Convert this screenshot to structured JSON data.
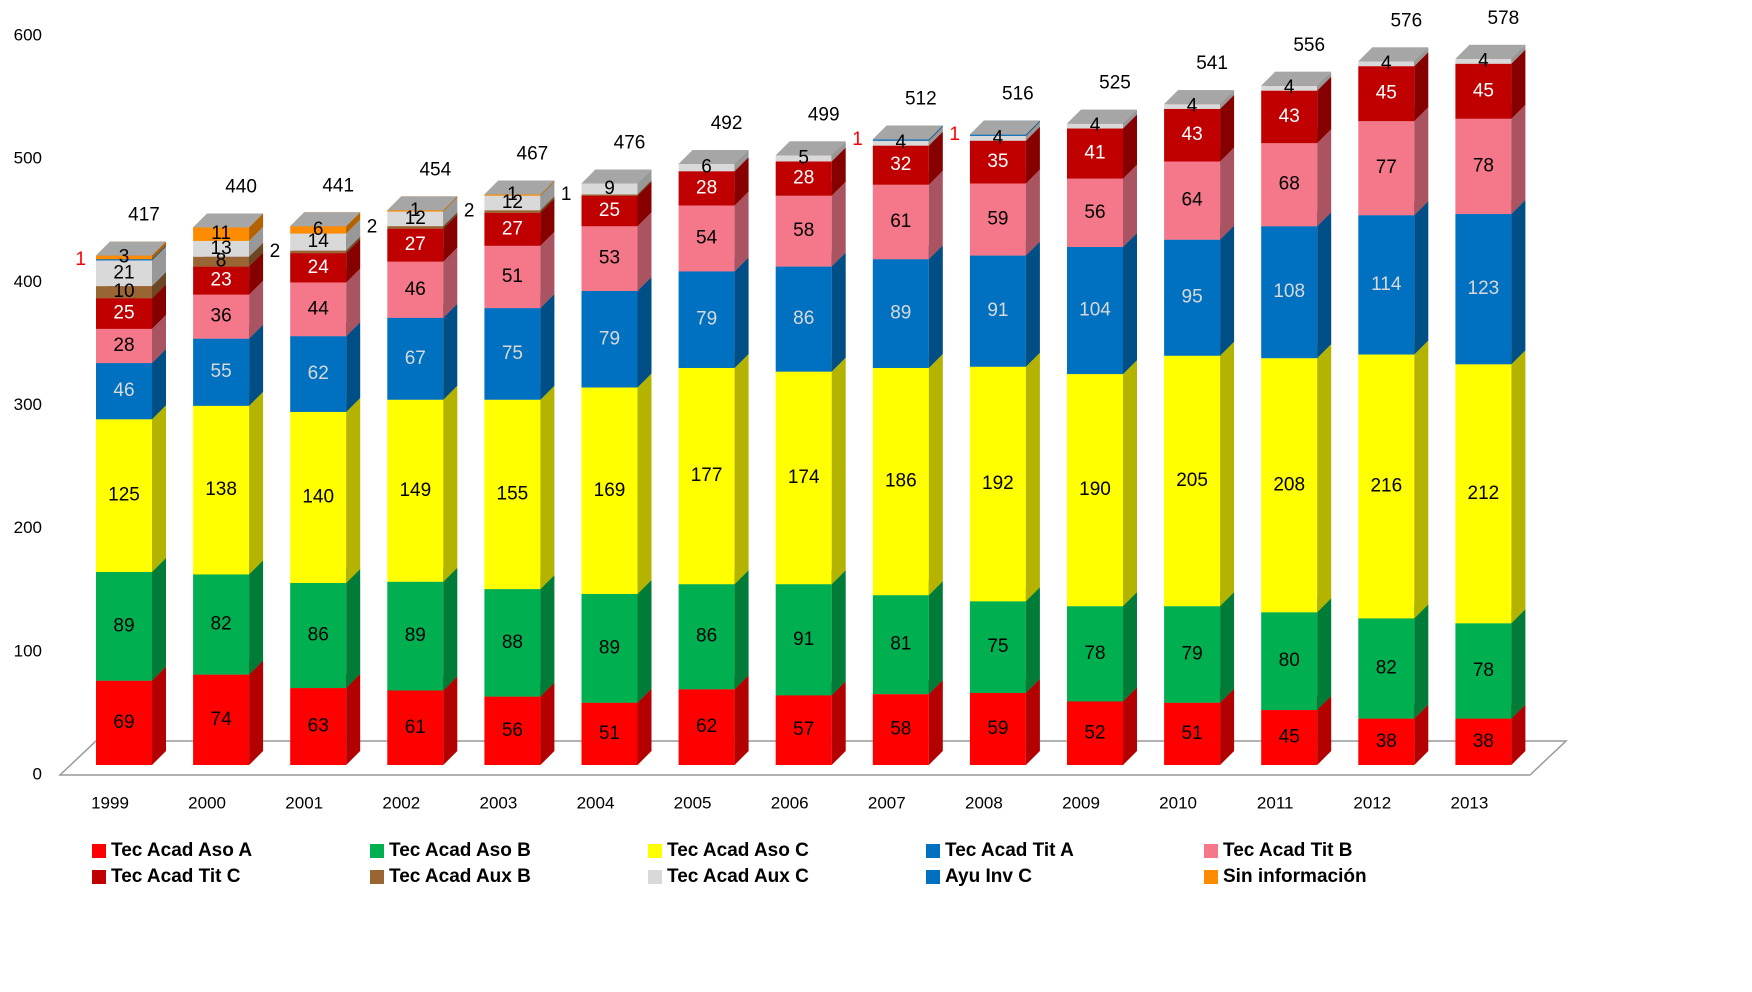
{
  "chart_data": {
    "type": "stacked_bar_3d",
    "categories": [
      "1999",
      "2000",
      "2001",
      "2002",
      "2003",
      "2004",
      "2005",
      "2006",
      "2007",
      "2008",
      "2009",
      "2010",
      "2011",
      "2012",
      "2013"
    ],
    "series": [
      {
        "name": "Tec Acad Aso A",
        "color": "#ff0000",
        "label_color": "#000000",
        "values": [
          69,
          74,
          63,
          61,
          56,
          51,
          62,
          57,
          58,
          59,
          52,
          51,
          45,
          38,
          38
        ]
      },
      {
        "name": "Tec Acad Aso B",
        "color": "#00b050",
        "label_color": "#000000",
        "values": [
          89,
          82,
          86,
          89,
          88,
          89,
          86,
          91,
          81,
          75,
          78,
          79,
          80,
          82,
          78
        ]
      },
      {
        "name": "Tec Acad Aso C",
        "color": "#ffff00",
        "label_color": "#000000",
        "values": [
          125,
          138,
          140,
          149,
          155,
          169,
          177,
          174,
          186,
          192,
          190,
          205,
          208,
          216,
          212
        ]
      },
      {
        "name": "Tec Acad Tit A",
        "color": "#0070c0",
        "label_color": "#d9d9d9",
        "values": [
          46,
          55,
          62,
          67,
          75,
          79,
          79,
          86,
          89,
          91,
          104,
          95,
          108,
          114,
          123
        ]
      },
      {
        "name": "Tec Acad Tit B",
        "color": "#f4788a",
        "label_color": "#000000",
        "values": [
          28,
          36,
          44,
          46,
          51,
          53,
          54,
          58,
          61,
          59,
          56,
          64,
          68,
          77,
          78
        ]
      },
      {
        "name": "Tec Acad Tit C",
        "color": "#c00000",
        "label_color": "#ffffff",
        "values": [
          25,
          23,
          24,
          27,
          27,
          25,
          28,
          28,
          32,
          35,
          41,
          43,
          43,
          45,
          45
        ]
      },
      {
        "name": "Tec Acad Aux B",
        "color": "#996633",
        "label_color": "#000000",
        "values": [
          10,
          8,
          2,
          2,
          2,
          1,
          null,
          null,
          null,
          null,
          null,
          null,
          null,
          null,
          null
        ]
      },
      {
        "name": "Tec Acad Aux C",
        "color": "#d9d9d9",
        "label_color": "#000000",
        "values": [
          21,
          13,
          14,
          12,
          12,
          9,
          6,
          5,
          4,
          4,
          4,
          4,
          4,
          4,
          4
        ]
      },
      {
        "name": "Ayu Inv C",
        "color": "#0070c0",
        "label_color": "#ff0000",
        "values": [
          1,
          null,
          null,
          null,
          null,
          null,
          null,
          null,
          1,
          1,
          null,
          null,
          null,
          null,
          null
        ]
      },
      {
        "name": "Sin información",
        "color": "#ff8c00",
        "label_color": "#000000",
        "values": [
          3,
          11,
          6,
          1,
          1,
          null,
          null,
          null,
          null,
          null,
          null,
          null,
          null,
          null,
          null
        ]
      }
    ],
    "totals": [
      417,
      440,
      441,
      454,
      467,
      476,
      492,
      499,
      512,
      516,
      525,
      541,
      556,
      576,
      578
    ],
    "ylim": [
      0,
      600
    ],
    "yticks": [
      0,
      100,
      200,
      300,
      400,
      500,
      600
    ]
  }
}
